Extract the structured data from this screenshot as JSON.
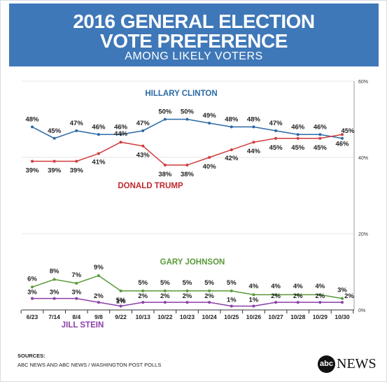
{
  "header": {
    "title_line1": "2016 GENERAL ELECTION",
    "title_line2": "VOTE PREFERENCE",
    "subtitle": "AMONG LIKELY VOTERS"
  },
  "footer": {
    "sources_label": "SOURCES:",
    "sources_text": "ABC NEWS AND ABC NEWS / WASHINGTON POST POLLS",
    "logo_circle": "abc",
    "logo_word": "NEWS"
  },
  "chart_data": {
    "type": "line",
    "categories": [
      "6/23",
      "7/14",
      "8/4",
      "9/8",
      "9/22",
      "10/13",
      "10/22",
      "10/23",
      "10/24",
      "10/25",
      "10/26",
      "10/27",
      "10/28",
      "10/29",
      "10/30"
    ],
    "ylim": [
      0,
      60
    ],
    "yticks": [
      "0%",
      "20%",
      "40%",
      "60%"
    ],
    "grid": true,
    "series": [
      {
        "name": "HILLARY CLINTON",
        "color": "#2b6aa6",
        "label_color": "#2b6aa6",
        "values": [
          48,
          45,
          47,
          46,
          46,
          47,
          50,
          50,
          49,
          48,
          48,
          47,
          46,
          46,
          45
        ],
        "labels": [
          "48%",
          "45%",
          "47%",
          "46%",
          "46%",
          "47%",
          "50%",
          "50%",
          "49%",
          "48%",
          "48%",
          "47%",
          "46%",
          "46%",
          "45%"
        ]
      },
      {
        "name": "DONALD TRUMP",
        "color": "#d23b3b",
        "label_color": "#c0272d",
        "values": [
          39,
          39,
          39,
          41,
          44,
          43,
          38,
          38,
          40,
          42,
          44,
          45,
          45,
          45,
          46
        ],
        "labels": [
          "39%",
          "39%",
          "39%",
          "41%",
          "44%",
          "43%",
          "38%",
          "38%",
          "40%",
          "42%",
          "44%",
          "45%",
          "45%",
          "45%",
          "46%"
        ]
      },
      {
        "name": "GARY JOHNSON",
        "color": "#5a9a3a",
        "label_color": "#5a9a3a",
        "values": [
          6,
          8,
          7,
          9,
          5,
          5,
          5,
          5,
          5,
          5,
          4,
          4,
          4,
          4,
          3
        ],
        "labels": [
          "6%",
          "8%",
          "7%",
          "9%",
          "5%",
          "5%",
          "5%",
          "5%",
          "5%",
          "5%",
          "4%",
          "4%",
          "4%",
          "4%",
          "3%"
        ]
      },
      {
        "name": "JILL STEIN",
        "color": "#8a3fa8",
        "label_color": "#8a3fa8",
        "values": [
          3,
          3,
          3,
          2,
          1,
          2,
          2,
          2,
          2,
          1,
          1,
          2,
          2,
          2,
          2
        ],
        "labels": [
          "3%",
          "3%",
          "3%",
          "2%",
          "1%",
          "2%",
          "2%",
          "2%",
          "2%",
          "1%",
          "1%",
          "2%",
          "2%",
          "2%",
          "2%"
        ]
      }
    ]
  }
}
